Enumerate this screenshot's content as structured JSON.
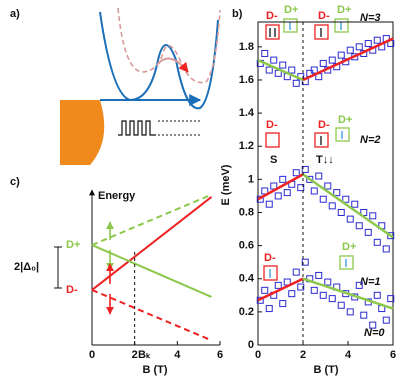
{
  "panels": {
    "a": {
      "label": "a)"
    }
  },
  "chart_data": [
    {
      "type": "scatter",
      "label": "b)",
      "x_label": "B (T)",
      "y_label": "E (meV)",
      "xlim": [
        0,
        6
      ],
      "xticks": [
        0,
        2,
        4,
        6
      ],
      "ylim": [
        0,
        1.95
      ],
      "yticks": [
        0,
        0.2,
        0.4,
        0.6,
        0.8,
        1,
        1.2,
        1.4,
        1.6,
        1.8
      ],
      "vline": 2,
      "series": [
        {
          "color": "#2a2ad0",
          "x": [
            0.1,
            0.3,
            0.5,
            0.7,
            0.9,
            1.1,
            1.3,
            1.5,
            1.7,
            1.9,
            2.1,
            2.3,
            2.5,
            2.7,
            2.9,
            3.1,
            3.3,
            3.5,
            3.7,
            3.9,
            4.1,
            4.3,
            4.5,
            4.7,
            4.9,
            5.1,
            5.3,
            5.5,
            5.7,
            5.9
          ],
          "values": [
            0.27,
            0.33,
            0.22,
            0.3,
            0.36,
            0.25,
            0.38,
            0.31,
            0.44,
            0.35,
            0.5,
            0.4,
            0.33,
            0.42,
            0.3,
            0.38,
            0.28,
            0.35,
            0.24,
            0.31,
            0.2,
            0.29,
            0.36,
            0.18,
            0.26,
            0.12,
            0.3,
            0.22,
            0.15,
            0.28
          ]
        },
        {
          "color": "#2a2ad0",
          "x": [
            0.1,
            0.3,
            0.5,
            0.7,
            0.9,
            1.1,
            1.3,
            1.5,
            1.7,
            1.9,
            2.1,
            2.3,
            2.5,
            2.7,
            2.9,
            3.1,
            3.3,
            3.5,
            3.7,
            3.9,
            4.1,
            4.3,
            4.5,
            4.7,
            4.9,
            5.1,
            5.3,
            5.5,
            5.7,
            5.9
          ],
          "values": [
            0.88,
            0.93,
            0.85,
            0.96,
            0.9,
            1,
            0.92,
            0.97,
            1.04,
            0.95,
            1.06,
            1,
            0.93,
            1.02,
            0.88,
            0.96,
            0.84,
            0.92,
            0.8,
            0.88,
            0.76,
            0.85,
            0.72,
            0.8,
            0.68,
            0.78,
            0.62,
            0.72,
            0.58,
            0.66
          ]
        },
        {
          "color": "#2a2ad0",
          "x": [
            0.1,
            0.3,
            0.5,
            0.7,
            0.9,
            1.1,
            1.3,
            1.5,
            1.7,
            1.9,
            2.1,
            2.3,
            2.5,
            2.7,
            2.9,
            3.1,
            3.3,
            3.5,
            3.7,
            3.9,
            4.1,
            4.3,
            4.5,
            4.7,
            4.9,
            5.1,
            5.3,
            5.5,
            5.7,
            5.9
          ],
          "values": [
            1.7,
            1.76,
            1.66,
            1.72,
            1.64,
            1.69,
            1.62,
            1.66,
            1.58,
            1.62,
            1.59,
            1.64,
            1.66,
            1.62,
            1.7,
            1.66,
            1.72,
            1.68,
            1.75,
            1.71,
            1.78,
            1.74,
            1.8,
            1.76,
            1.82,
            1.78,
            1.84,
            1.8,
            1.85,
            1.82
          ]
        }
      ],
      "lines": [
        {
          "color": "#ee2222",
          "x": [
            0,
            2
          ],
          "values": [
            0.27,
            0.4
          ]
        },
        {
          "color": "#8cc84b",
          "x": [
            2,
            6
          ],
          "values": [
            0.4,
            0.22
          ]
        },
        {
          "color": "#ee2222",
          "x": [
            0,
            2
          ],
          "values": [
            0.88,
            1.03
          ]
        },
        {
          "color": "#8cc84b",
          "x": [
            2,
            6
          ],
          "values": [
            1.03,
            0.65
          ]
        },
        {
          "color": "#8cc84b",
          "x": [
            0,
            2
          ],
          "values": [
            1.72,
            1.6
          ]
        },
        {
          "color": "#ee2222",
          "x": [
            2,
            6
          ],
          "values": [
            1.6,
            1.85
          ]
        }
      ],
      "annotations": [
        "D-",
        "D+",
        "D-",
        "D+",
        "N=3",
        "D-",
        "D-",
        "D+",
        "N=2",
        "S",
        "T↓↓",
        "D-",
        "D+",
        "N=1",
        "N=0"
      ]
    },
    {
      "type": "line",
      "label": "c)",
      "x_label": "B (T)",
      "y_label": "Energy",
      "xlim": [
        0,
        6
      ],
      "xticks": [
        0,
        2,
        4,
        6
      ],
      "ylim": [
        0,
        10
      ],
      "vline": 2,
      "series": [
        {
          "color": "#ee2222",
          "x": [
            0,
            5.6
          ],
          "values": [
            3.55,
            9.55
          ],
          "dashed": false
        },
        {
          "color": "#8cc84b",
          "x": [
            0,
            5.6
          ],
          "values": [
            6.45,
            3.1
          ],
          "dashed": false
        },
        {
          "color": "#ee2222",
          "x": [
            0,
            5.6
          ],
          "values": [
            3.55,
            0.3
          ],
          "dashed": true
        },
        {
          "color": "#8cc84b",
          "x": [
            0,
            5.6
          ],
          "values": [
            6.45,
            9.7
          ],
          "dashed": true
        }
      ],
      "annotations": [
        "D+",
        "D-",
        "2|Δ₀|",
        "Bₖ"
      ]
    }
  ]
}
